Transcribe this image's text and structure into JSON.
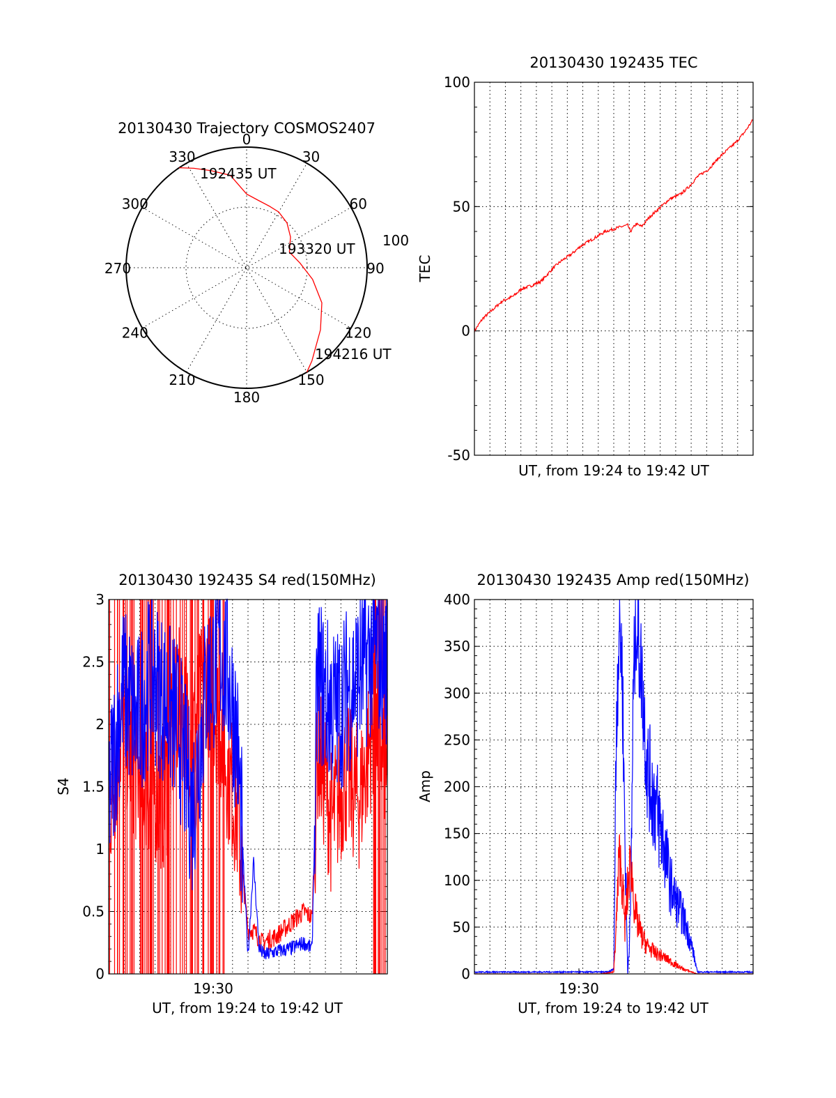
{
  "colors": {
    "red": "#ff0000",
    "blue": "#0000ff",
    "axis": "#000000",
    "background": "#ffffff"
  },
  "chart_data": [
    {
      "id": "trajectory",
      "type": "scatter",
      "title": "20130430 Trajectory COSMOS2407",
      "projection": "polar",
      "azimuth_labels": [
        "0",
        "30",
        "60",
        "90",
        "120",
        "150",
        "180",
        "210",
        "240",
        "270",
        "300",
        "330"
      ],
      "radial_label": "100",
      "annotations": [
        "192435 UT",
        "193320 UT",
        "194216 UT"
      ],
      "track": {
        "color": "#ff0000",
        "azimuth_deg": [
          -34,
          -28,
          -20,
          -10,
          0,
          10,
          20,
          30,
          42,
          55,
          70,
          85,
          100,
          115,
          130,
          145,
          150
        ],
        "zenith_deg": [
          90,
          84,
          77,
          70,
          55,
          51,
          49,
          48,
          45,
          40,
          34,
          40,
          50,
          62,
          72,
          85,
          90
        ]
      }
    },
    {
      "id": "tec",
      "type": "line",
      "title": "20130430 192435 TEC",
      "xlabel": "UT, from 19:24 to 19:42 UT",
      "ylabel": "TEC",
      "ylim": [
        -50,
        100
      ],
      "yticks": [
        "-50",
        "0",
        "50",
        "100"
      ],
      "xlim": [
        0,
        1
      ],
      "grid": true,
      "series": [
        {
          "color": "#ff0000",
          "x": [
            0,
            0.03,
            0.07,
            0.1,
            0.14,
            0.17,
            0.2,
            0.24,
            0.28,
            0.31,
            0.35,
            0.38,
            0.41,
            0.44,
            0.47,
            0.5,
            0.53,
            0.55,
            0.56,
            0.58,
            0.6,
            0.63,
            0.67,
            0.7,
            0.74,
            0.77,
            0.8,
            0.84,
            0.88,
            0.91,
            0.94,
            0.97,
            1.0
          ],
          "y": [
            0,
            5,
            9,
            12,
            14,
            17,
            18,
            20,
            25,
            28,
            31,
            34,
            36,
            38,
            40,
            41,
            42,
            42.5,
            40,
            43,
            42,
            46,
            50,
            53,
            55,
            58,
            62,
            65,
            70,
            73,
            76,
            80,
            85
          ]
        }
      ]
    },
    {
      "id": "s4",
      "type": "line",
      "title": "20130430 192435 S4 red(150MHz)",
      "xlabel": "UT, from 19:24 to 19:42 UT",
      "ylabel": "S4",
      "ylim": [
        0,
        3
      ],
      "yticks": [
        "0",
        "0.5",
        "1",
        "1.5",
        "2",
        "2.5",
        "3"
      ],
      "xticks": [
        "19:30"
      ],
      "xtick_pos": [
        0.375
      ],
      "xlim": [
        0,
        1
      ],
      "grid": true,
      "series": [
        {
          "color": "#ff0000",
          "x": [
            0,
            0.05,
            0.1,
            0.15,
            0.2,
            0.25,
            0.3,
            0.35,
            0.4,
            0.43,
            0.46,
            0.48,
            0.5,
            0.52,
            0.55,
            0.6,
            0.65,
            0.7,
            0.73,
            0.75,
            0.78,
            0.8,
            0.85,
            0.9,
            0.95,
            1.0
          ],
          "y": [
            1.3,
            2.0,
            1.6,
            1.5,
            1.4,
            2.2,
            1.9,
            2.4,
            2.0,
            1.6,
            1.3,
            0.8,
            0.35,
            0.35,
            0.25,
            0.3,
            0.4,
            0.5,
            0.45,
            1.8,
            1.5,
            1.2,
            1.6,
            1.4,
            2.0,
            1.7
          ]
        },
        {
          "color": "#0000ff",
          "x": [
            0,
            0.05,
            0.1,
            0.15,
            0.2,
            0.25,
            0.3,
            0.35,
            0.4,
            0.43,
            0.46,
            0.5,
            0.52,
            0.54,
            0.56,
            0.6,
            0.65,
            0.7,
            0.73,
            0.75,
            0.78,
            0.82,
            0.86,
            0.9,
            0.95,
            1.0
          ],
          "y": [
            1.4,
            2.3,
            2.0,
            2.4,
            2.2,
            2.0,
            1.3,
            2.3,
            2.6,
            2.4,
            1.9,
            0.15,
            0.9,
            0.2,
            0.15,
            0.18,
            0.2,
            0.25,
            0.2,
            2.4,
            2.2,
            2.1,
            2.3,
            2.4,
            2.6,
            2.5
          ]
        }
      ]
    },
    {
      "id": "amp",
      "type": "line",
      "title": "20130430 192435 Amp red(150MHz)",
      "xlabel": "UT, from 19:24 to 19:42 UT",
      "ylabel": "Amp",
      "ylim": [
        0,
        400
      ],
      "yticks": [
        "0",
        "50",
        "100",
        "150",
        "200",
        "250",
        "300",
        "350",
        "400"
      ],
      "xticks": [
        "19:30"
      ],
      "xtick_pos": [
        0.375
      ],
      "xlim": [
        0,
        1
      ],
      "grid": true,
      "series": [
        {
          "color": "#ff0000",
          "x": [
            0,
            0.45,
            0.5,
            0.51,
            0.52,
            0.53,
            0.54,
            0.55,
            0.56,
            0.58,
            0.6,
            0.62,
            0.65,
            0.68,
            0.7,
            0.72,
            0.75,
            0.8,
            1.0
          ],
          "y": [
            0,
            0,
            2,
            60,
            130,
            100,
            50,
            90,
            120,
            60,
            40,
            30,
            22,
            18,
            14,
            10,
            5,
            0,
            0
          ]
        },
        {
          "color": "#0000ff",
          "x": [
            0,
            0.48,
            0.5,
            0.51,
            0.52,
            0.53,
            0.54,
            0.55,
            0.56,
            0.57,
            0.58,
            0.6,
            0.62,
            0.65,
            0.68,
            0.7,
            0.72,
            0.75,
            0.78,
            0.8,
            1.0
          ],
          "y": [
            2,
            2,
            5,
            280,
            380,
            330,
            150,
            0,
            60,
            300,
            380,
            320,
            220,
            180,
            140,
            100,
            80,
            60,
            30,
            2,
            2
          ]
        }
      ]
    }
  ]
}
